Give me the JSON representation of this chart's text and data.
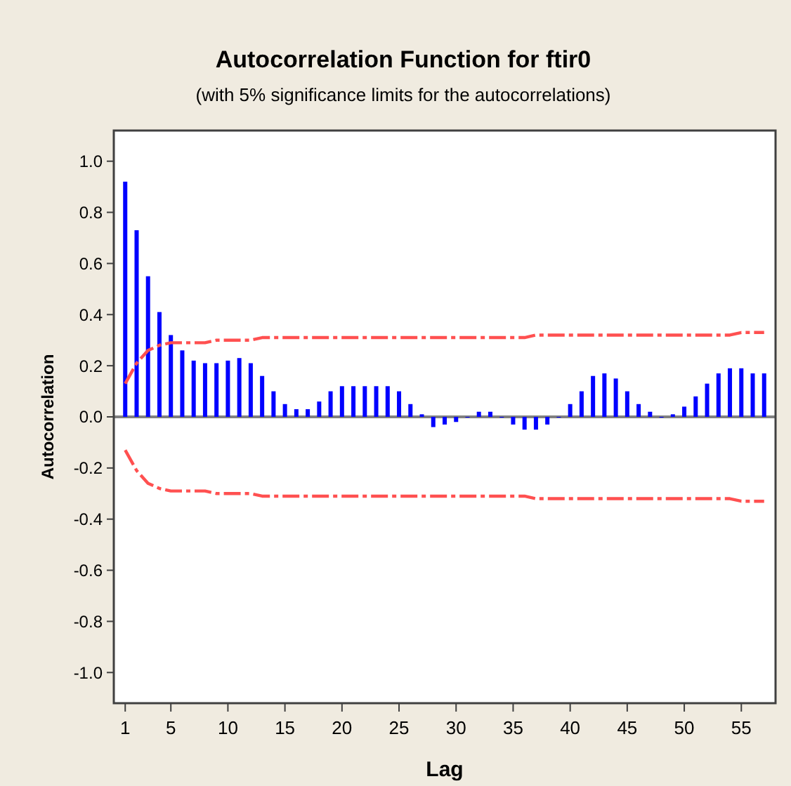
{
  "chart_data": {
    "type": "bar",
    "title": "Autocorrelation Function for ftir0",
    "subtitle": "(with 5% significance limits for the autocorrelations)",
    "xlabel": "Lag",
    "ylabel": "Autocorrelation",
    "x": [
      1,
      2,
      3,
      4,
      5,
      6,
      7,
      8,
      9,
      10,
      11,
      12,
      13,
      14,
      15,
      16,
      17,
      18,
      19,
      20,
      21,
      22,
      23,
      24,
      25,
      26,
      27,
      28,
      29,
      30,
      31,
      32,
      33,
      34,
      35,
      36,
      37,
      38,
      39,
      40,
      41,
      42,
      43,
      44,
      45,
      46,
      47,
      48,
      49,
      50,
      51,
      52,
      53,
      54,
      55,
      56,
      57
    ],
    "series": [
      {
        "color": "#0000ff",
        "values": [
          0.92,
          0.73,
          0.55,
          0.41,
          0.32,
          0.26,
          0.22,
          0.21,
          0.21,
          0.22,
          0.23,
          0.21,
          0.16,
          0.1,
          0.05,
          0.03,
          0.03,
          0.06,
          0.1,
          0.12,
          0.12,
          0.12,
          0.12,
          0.12,
          0.1,
          0.05,
          0.01,
          -0.04,
          -0.03,
          -0.02,
          0,
          0.02,
          0.02,
          0,
          -0.03,
          -0.05,
          -0.05,
          -0.03,
          0,
          0.05,
          0.1,
          0.16,
          0.17,
          0.15,
          0.1,
          0.05,
          0.02,
          0,
          0.01,
          0.04,
          0.08,
          0.13,
          0.17,
          0.19,
          0.19,
          0.17,
          0.17
        ]
      },
      {
        "type": "line",
        "color": "#ff5050",
        "line_style": "dashed",
        "values": [
          0.13,
          0.21,
          0.26,
          0.28,
          0.29,
          0.29,
          0.29,
          0.29,
          0.3,
          0.3,
          0.3,
          0.3,
          0.31,
          0.31,
          0.31,
          0.31,
          0.31,
          0.31,
          0.31,
          0.31,
          0.31,
          0.31,
          0.31,
          0.31,
          0.31,
          0.31,
          0.31,
          0.31,
          0.31,
          0.31,
          0.31,
          0.31,
          0.31,
          0.31,
          0.31,
          0.31,
          0.32,
          0.32,
          0.32,
          0.32,
          0.32,
          0.32,
          0.32,
          0.32,
          0.32,
          0.32,
          0.32,
          0.32,
          0.32,
          0.32,
          0.32,
          0.32,
          0.32,
          0.32,
          0.33,
          0.33,
          0.33
        ]
      },
      {
        "type": "line",
        "color": "#ff5050",
        "line_style": "dashed",
        "values": [
          -0.13,
          -0.21,
          -0.26,
          -0.28,
          -0.29,
          -0.29,
          -0.29,
          -0.29,
          -0.3,
          -0.3,
          -0.3,
          -0.3,
          -0.31,
          -0.31,
          -0.31,
          -0.31,
          -0.31,
          -0.31,
          -0.31,
          -0.31,
          -0.31,
          -0.31,
          -0.31,
          -0.31,
          -0.31,
          -0.31,
          -0.31,
          -0.31,
          -0.31,
          -0.31,
          -0.31,
          -0.31,
          -0.31,
          -0.31,
          -0.31,
          -0.31,
          -0.32,
          -0.32,
          -0.32,
          -0.32,
          -0.32,
          -0.32,
          -0.32,
          -0.32,
          -0.32,
          -0.32,
          -0.32,
          -0.32,
          -0.32,
          -0.32,
          -0.32,
          -0.32,
          -0.32,
          -0.32,
          -0.33,
          -0.33,
          -0.33
        ]
      }
    ],
    "xlim": [
      0,
      58
    ],
    "xticks": [
      1,
      5,
      10,
      15,
      20,
      25,
      30,
      35,
      40,
      45,
      50,
      55
    ],
    "ylim": [
      -1.12,
      1.12
    ],
    "yticks": [
      {
        "value": -1,
        "label": "-1.0"
      },
      {
        "value": -0.8,
        "label": "-0.8"
      },
      {
        "value": -0.6,
        "label": "-0.6"
      },
      {
        "value": -0.4,
        "label": "-0.4"
      },
      {
        "value": -0.2,
        "label": "-0.2"
      },
      {
        "value": 0,
        "label": "0.0"
      },
      {
        "value": 0.2,
        "label": "0.2"
      },
      {
        "value": 0.4,
        "label": "0.4"
      },
      {
        "value": 0.6,
        "label": "0.6"
      },
      {
        "value": 0.8,
        "label": "0.8"
      },
      {
        "value": 1,
        "label": "1.0"
      }
    ],
    "ref_lines": [
      {
        "axis": "y",
        "value": 0,
        "color": "#808080"
      }
    ],
    "grid": false
  }
}
